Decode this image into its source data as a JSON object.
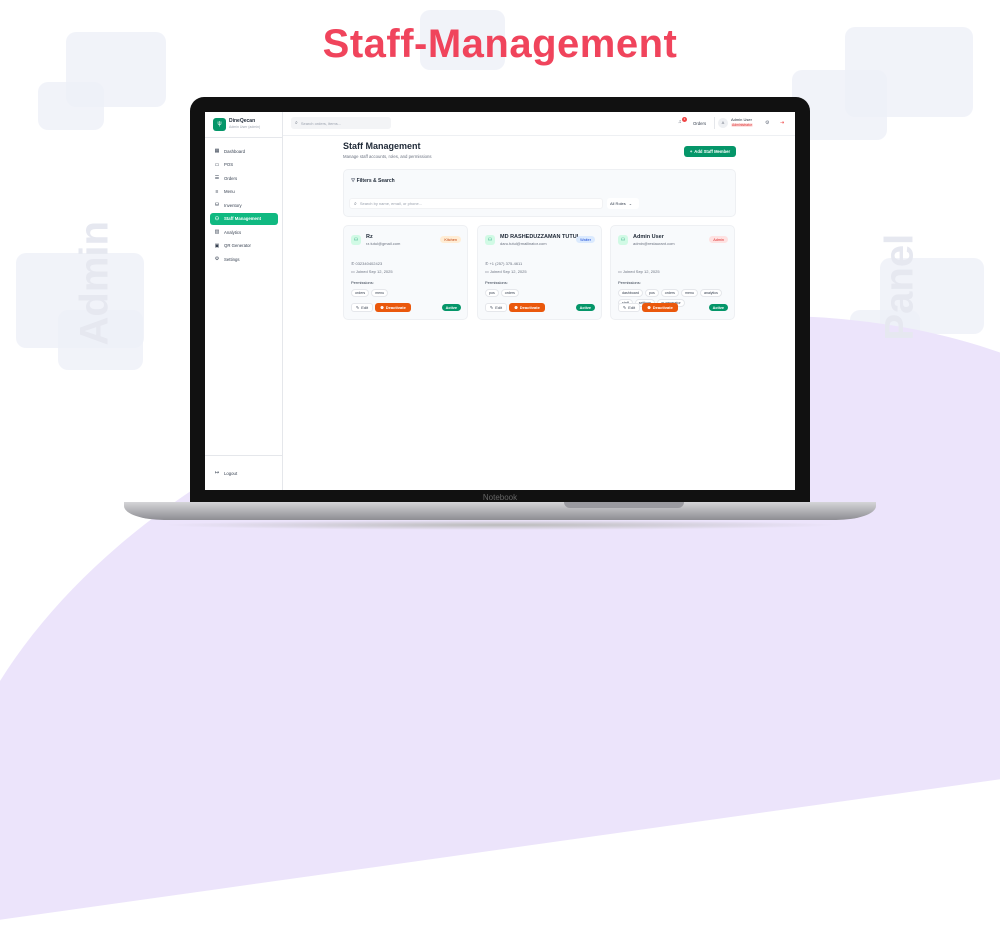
{
  "headline": "Staff-Management",
  "side_words": {
    "left": "Admin",
    "right": "Panel"
  },
  "laptop_label": "Notebook",
  "brand": {
    "name": "DineQecan",
    "subtitle": "Admin User (admin)"
  },
  "search": {
    "placeholder": "Search orders, items..."
  },
  "header": {
    "notification_count": "1",
    "orders": "Orders",
    "user_name": "Admin User",
    "user_role": "Administrator"
  },
  "sidebar": {
    "items": [
      {
        "label": "Dashboard",
        "icon": "dashboard-icon",
        "glyph": "▦"
      },
      {
        "label": "POS",
        "icon": "pos-icon",
        "glyph": "▭"
      },
      {
        "label": "Orders",
        "icon": "orders-icon",
        "glyph": "☰"
      },
      {
        "label": "Menu",
        "icon": "menu-icon",
        "glyph": "≡"
      },
      {
        "label": "Inventory",
        "icon": "inventory-icon",
        "glyph": "⛁"
      },
      {
        "label": "Staff Management",
        "icon": "staff-icon",
        "glyph": "⚇",
        "active": true
      },
      {
        "label": "Analytics",
        "icon": "analytics-icon",
        "glyph": "▥"
      },
      {
        "label": "QR Generator",
        "icon": "qr-icon",
        "glyph": "▣"
      },
      {
        "label": "Settings",
        "icon": "settings-icon",
        "glyph": "⚙"
      }
    ],
    "logout": "Logout"
  },
  "page": {
    "title": "Staff Management",
    "subtitle": "Manage staff accounts, roles, and permissions",
    "add_button": "Add Staff Member"
  },
  "filters": {
    "title": "Filters & Search",
    "search_placeholder": "Search by name, email, or phone...",
    "role_select": "All Roles"
  },
  "staff": [
    {
      "name": "Rz",
      "email": "rz.tutul@gmail.com",
      "role": "Kitchen",
      "role_bg": "#ffedd5",
      "role_fg": "#c2410c",
      "phone": "032340402423",
      "joined": "Joined Sep 12, 2025",
      "permissions_label": "Permissions:",
      "permissions": [
        "orders",
        "menu"
      ],
      "edit": "Edit",
      "deactivate": "Deactivate",
      "status": "Active"
    },
    {
      "name": "MD RASHEDUZZAMAN TUTUL",
      "email": "daru.tutul@mailinator.com",
      "role": "Waiter",
      "role_bg": "#dbeafe",
      "role_fg": "#1d4ed8",
      "phone": "+1 (257) 375-4611",
      "joined": "Joined Sep 12, 2025",
      "permissions_label": "Permissions:",
      "permissions": [
        "pos",
        "orders"
      ],
      "edit": "Edit",
      "deactivate": "Deactivate",
      "status": "Active"
    },
    {
      "name": "Admin User",
      "email": "admin@restaurant.com",
      "role": "Admin",
      "role_bg": "#fee2e2",
      "role_fg": "#dc2626",
      "phone": "",
      "joined": "Joined Sep 12, 2025",
      "permissions_label": "Permissions:",
      "permissions": [
        "dashboard",
        "pos",
        "orders",
        "menu",
        "analytics",
        "staff",
        "settings",
        "qr generator"
      ],
      "edit": "Edit",
      "deactivate": "Deactivate",
      "status": "Active"
    }
  ],
  "colors": {
    "accent": "#10b981",
    "headline": "#f0445c",
    "deactivate": "#ea580c"
  }
}
